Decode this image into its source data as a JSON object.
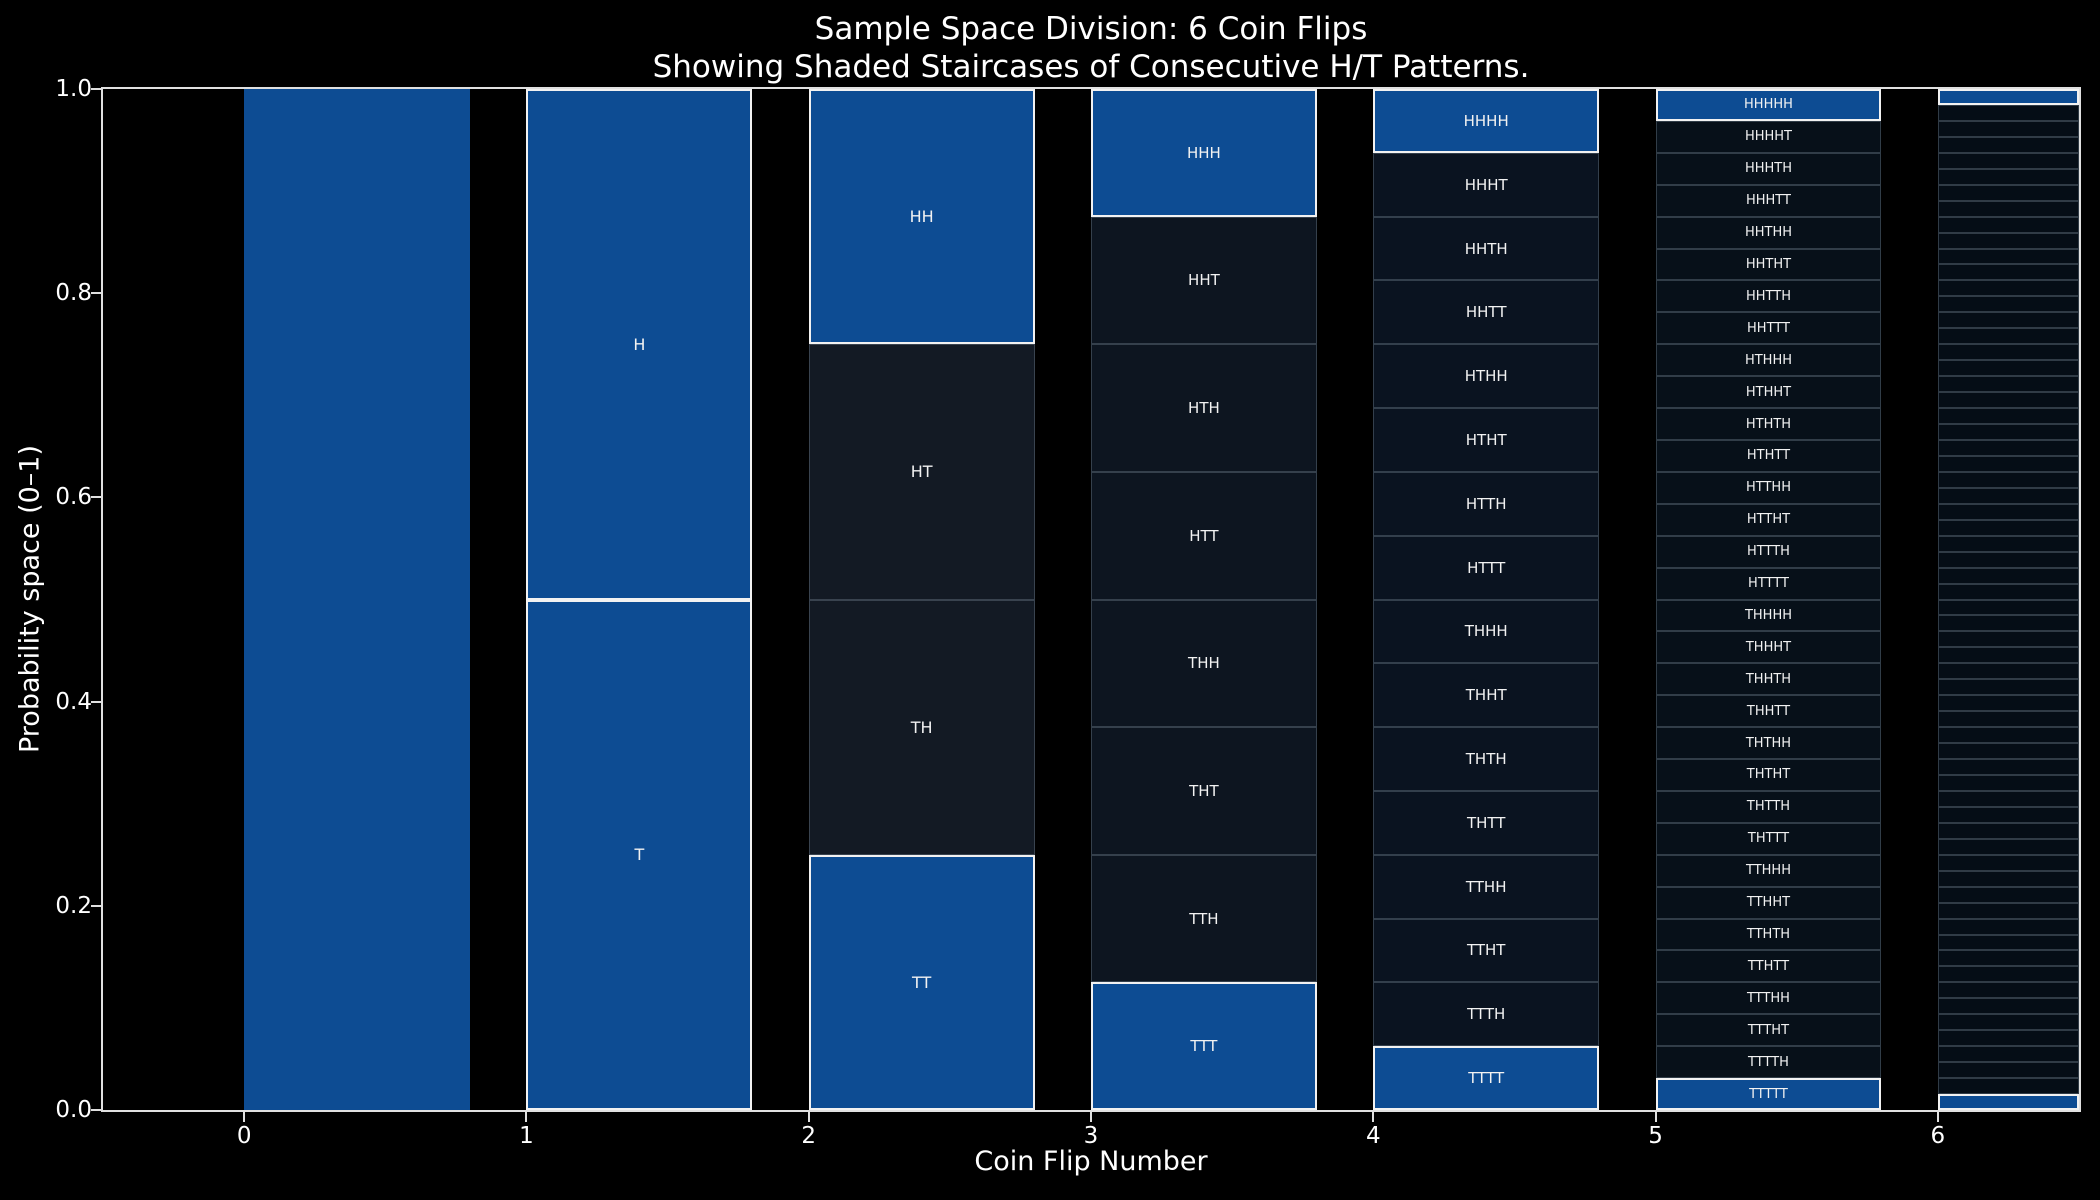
{
  "title": {
    "line1": "Sample Space Division: 6 Coin Flips",
    "line2": "Showing Shaded Staircases of Consecutive H/T Patterns."
  },
  "axes": {
    "xlabel": "Coin Flip Number",
    "ylabel": "Probability space (0–1)",
    "x_tick_labels": [
      "0",
      "1",
      "2",
      "3",
      "4",
      "5",
      "6"
    ],
    "y_tick_labels": [
      "0.0",
      "0.2",
      "0.4",
      "0.6",
      "0.8",
      "1.0"
    ]
  },
  "chart_data": {
    "type": "bar",
    "subtype": "sample-space-mosaic-staircase",
    "title": "Sample Space Division: 6 Coin Flips\nShowing Shaded Staircases of Consecutive H/T Patterns.",
    "xlabel": "Coin Flip Number",
    "ylabel": "Probability space (0–1)",
    "xlim": [
      -0.5,
      6.5
    ],
    "ylim": [
      0.0,
      1.0
    ],
    "x_tick_values": [
      0,
      1,
      2,
      3,
      4,
      5,
      6
    ],
    "y_tick_values": [
      0.0,
      0.2,
      0.4,
      0.6,
      0.8,
      1.0
    ],
    "bar_width": 0.8,
    "grid": false,
    "legend": "none",
    "colors": {
      "background": "#000000",
      "text": "#ffffff",
      "spine": "#e0e0e0",
      "highlight": "#0d4c93",
      "highlight_edge": "#f2f2f2",
      "dark_by_flip": {
        "2": "#131a24",
        "3": "#0d1520",
        "4": "#0a1320",
        "5": "#071019",
        "6": "#050d16"
      }
    },
    "columns": [
      {
        "flip": 0,
        "cell_count": 1,
        "cell_height": 1.0,
        "highlighted_indices": [
          0
        ],
        "show_labels": false,
        "labels": []
      },
      {
        "flip": 1,
        "cell_count": 2,
        "cell_height": 0.5,
        "highlighted_indices": [
          0,
          1
        ],
        "show_labels": true,
        "labels": [
          "H",
          "T"
        ]
      },
      {
        "flip": 2,
        "cell_count": 4,
        "cell_height": 0.25,
        "highlighted_indices": [
          0,
          3
        ],
        "show_labels": true,
        "labels": [
          "HH",
          "HT",
          "TH",
          "TT"
        ]
      },
      {
        "flip": 3,
        "cell_count": 8,
        "cell_height": 0.125,
        "highlighted_indices": [
          0,
          7
        ],
        "show_labels": true,
        "labels": [
          "HHH",
          "HHT",
          "HTH",
          "HTT",
          "THH",
          "THT",
          "TTH",
          "TTT"
        ]
      },
      {
        "flip": 4,
        "cell_count": 16,
        "cell_height": 0.0625,
        "highlighted_indices": [
          0,
          15
        ],
        "show_labels": true,
        "labels": [
          "HHHH",
          "HHHT",
          "HHTH",
          "HHTT",
          "HTHH",
          "HTHT",
          "HTTH",
          "HTTT",
          "THHH",
          "THHT",
          "THTH",
          "THTT",
          "TTHH",
          "TTHT",
          "TTTH",
          "TTTT"
        ]
      },
      {
        "flip": 5,
        "cell_count": 32,
        "cell_height": 0.03125,
        "highlighted_indices": [
          0,
          31
        ],
        "show_labels": true,
        "labels": [
          "HHHHH",
          "HHHHT",
          "HHHTH",
          "HHHTT",
          "HHTHH",
          "HHTHT",
          "HHTTH",
          "HHTTT",
          "HTHHH",
          "HTHHT",
          "HTHTH",
          "HTHTT",
          "HTTHH",
          "HTTHT",
          "HTTTH",
          "HTTTT",
          "THHHH",
          "THHHT",
          "THHTH",
          "THHTT",
          "THTHH",
          "THTHT",
          "THTTH",
          "THTTT",
          "TTHHH",
          "TTHHT",
          "TTHTH",
          "TTHTT",
          "TTTHH",
          "TTTHT",
          "TTTTH",
          "TTTTT"
        ]
      },
      {
        "flip": 6,
        "cell_count": 64,
        "cell_height": 0.015625,
        "highlighted_indices": [
          0,
          63
        ],
        "show_labels": false,
        "labels": []
      }
    ]
  }
}
